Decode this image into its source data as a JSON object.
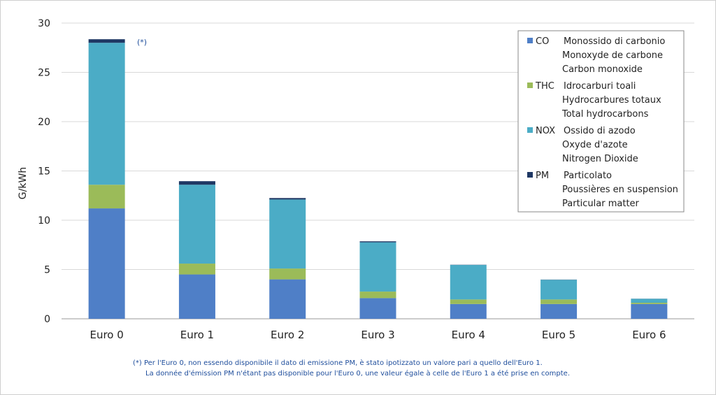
{
  "chart_data": {
    "type": "bar",
    "stacked": true,
    "categories": [
      "Euro 0",
      "Euro 1",
      "Euro 2",
      "Euro 3",
      "Euro 4",
      "Euro 5",
      "Euro 6"
    ],
    "ylabel": "G/kWh",
    "ylim": [
      0,
      30
    ],
    "yticks": [
      "0",
      "5",
      "10",
      "15",
      "20",
      "25",
      "30"
    ],
    "grid": true,
    "legend_position": "top-right",
    "series": [
      {
        "name": "CO",
        "color": "#4f7fc7",
        "values": [
          11.2,
          4.5,
          4.0,
          2.1,
          1.5,
          1.5,
          1.5
        ],
        "labels": [
          "Monossido di carbonio",
          "Monoxyde de carbone",
          "Carbon monoxide"
        ]
      },
      {
        "name": "THC",
        "color": "#9bbb59",
        "values": [
          2.4,
          1.1,
          1.1,
          0.66,
          0.46,
          0.46,
          0.13
        ],
        "labels": [
          "Idrocarburi toali",
          "Hydrocarbures totaux",
          "Total hydrocarbons"
        ]
      },
      {
        "name": "NOX",
        "color": "#4bacc6",
        "values": [
          14.4,
          8.0,
          7.0,
          5.0,
          3.5,
          2.0,
          0.4
        ],
        "labels": [
          "Ossido di azodo",
          "Oxyde d'azote",
          "Nitrogen Dioxide"
        ]
      },
      {
        "name": "PM",
        "color": "#1f3864",
        "values": [
          0.36,
          0.36,
          0.15,
          0.1,
          0.02,
          0.02,
          0.01
        ],
        "labels": [
          "Particolato",
          "Poussières en suspension",
          "Particular matter"
        ]
      }
    ],
    "annotation": "(*)",
    "footnote": [
      "(*)  Per l'Euro 0, non essendo disponibile il dato di emissione PM, è stato ipotizzato un valore pari a quello dell'Euro 1.",
      "La donnée d'émission PM n'étant pas disponible pour l'Euro 0, une valeur égale à celle de l'Euro 1 a été prise en compte."
    ]
  }
}
